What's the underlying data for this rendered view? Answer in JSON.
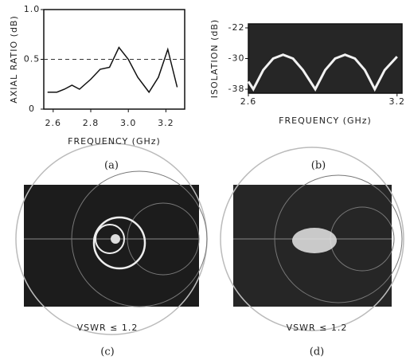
{
  "chart_data": [
    {
      "type": "line",
      "caption": "(a)",
      "xlabel": "FREQUENCY (GHz)",
      "ylabel": "AXIAL RATIO (dB)",
      "x": [
        2.57,
        2.62,
        2.66,
        2.7,
        2.74,
        2.8,
        2.85,
        2.9,
        2.95,
        3.0,
        3.05,
        3.11,
        3.16,
        3.21,
        3.26
      ],
      "values": [
        0.17,
        0.17,
        0.2,
        0.24,
        0.2,
        0.3,
        0.4,
        0.42,
        0.62,
        0.5,
        0.32,
        0.17,
        0.32,
        0.6,
        0.22
      ],
      "color": "#111111",
      "background": "#ffffff",
      "hline": 0.5,
      "xlim": [
        2.55,
        3.3
      ],
      "xticks": [
        2.6,
        2.8,
        {
          "value": 3,
          "label": "3.0"
        },
        3.2
      ],
      "ylim": [
        0,
        1
      ],
      "yticks": [
        0,
        0.5,
        {
          "value": 1,
          "label": "1.0"
        }
      ]
    },
    {
      "type": "line",
      "caption": "(b)",
      "xlabel": "FREQUENCY (GHz)",
      "ylabel": "ISOLATION (dB)",
      "x": [
        2.6,
        2.62,
        2.66,
        2.7,
        2.74,
        2.78,
        2.82,
        2.87,
        2.91,
        2.95,
        2.99,
        3.03,
        3.07,
        3.11,
        3.15,
        3.2
      ],
      "values": [
        -36,
        -38,
        -33,
        -30,
        -29,
        -30,
        -33,
        -38,
        -33,
        -30,
        -29,
        -30,
        -33,
        -38,
        -33,
        -29.5
      ],
      "color": "#f2f2f2",
      "background": "#262626",
      "xlim": [
        2.6,
        3.22
      ],
      "xticks": [
        2.6,
        3.2
      ],
      "ylim": [
        -38,
        -22
      ],
      "yticks": [
        -22,
        -30,
        -38
      ]
    }
  ],
  "figures": [
    {
      "label": "VSWR ≤ 1.2",
      "caption": "(c)"
    },
    {
      "label": "VSWR ≤ 1.2",
      "caption": "(d)"
    }
  ]
}
